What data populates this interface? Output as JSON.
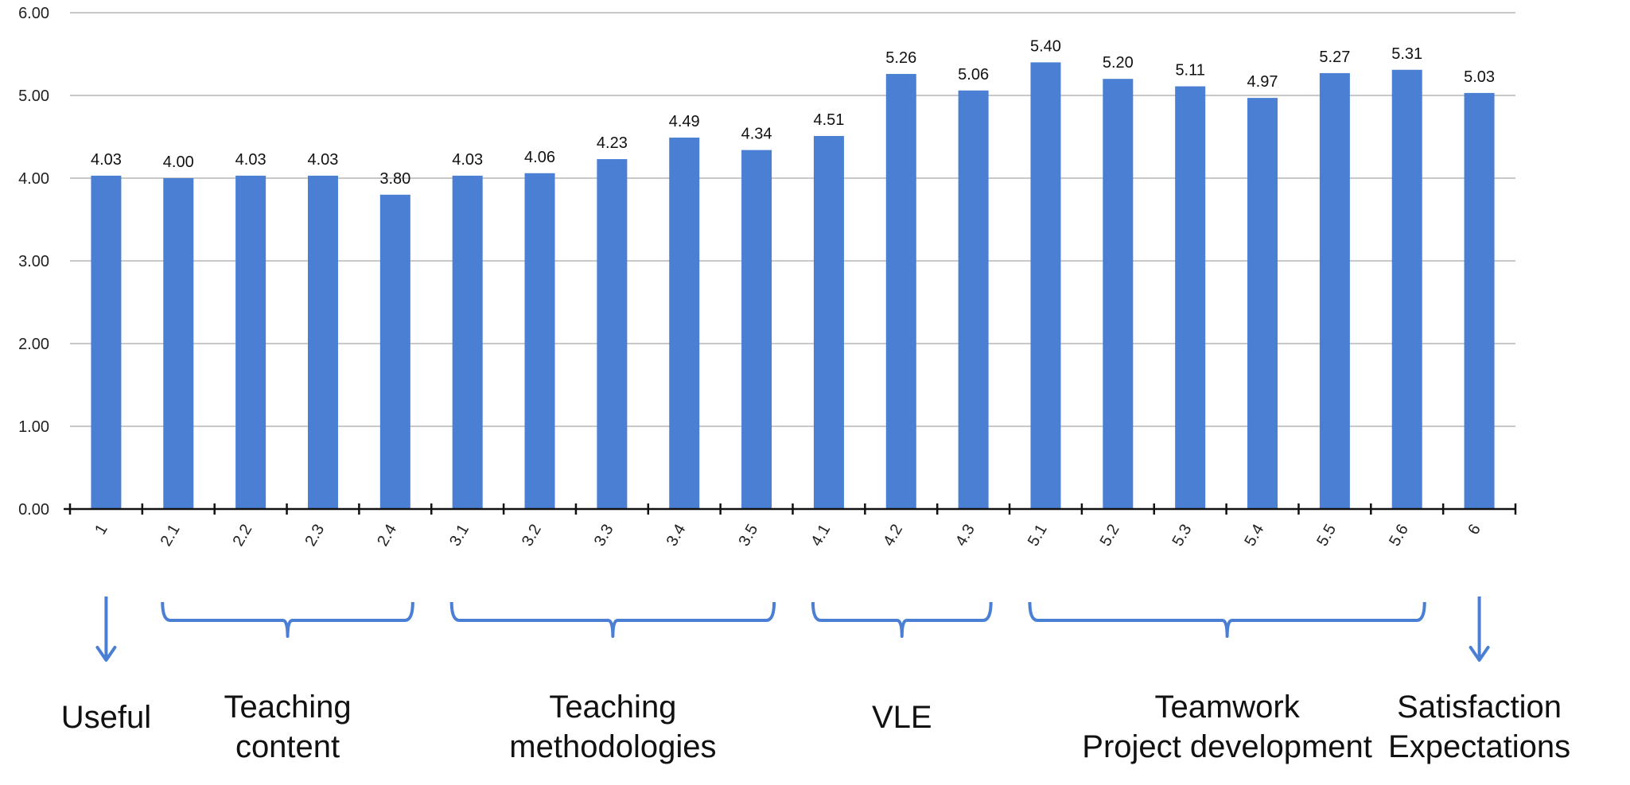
{
  "chart_data": {
    "type": "bar",
    "categories": [
      "1",
      "2.1",
      "2.2",
      "2.3",
      "2.4",
      "3.1",
      "3.2",
      "3.3",
      "3.4",
      "3.5",
      "4.1",
      "4.2",
      "4.3",
      "5.1",
      "5.2",
      "5.3",
      "5.4",
      "5.5",
      "5.6",
      "6"
    ],
    "values": [
      4.03,
      4.0,
      4.03,
      4.03,
      3.8,
      4.03,
      4.06,
      4.23,
      4.49,
      4.34,
      4.51,
      5.26,
      5.06,
      5.4,
      5.2,
      5.11,
      4.97,
      5.27,
      5.31,
      5.03
    ],
    "data_labels": [
      "4.03",
      "4.00",
      "4.03",
      "4.03",
      "3.80",
      "4.03",
      "4.06",
      "4.23",
      "4.49",
      "4.34",
      "4.51",
      "5.26",
      "5.06",
      "5.40",
      "5.20",
      "5.11",
      "4.97",
      "5.27",
      "5.31",
      "5.03"
    ],
    "title": "",
    "xlabel": "",
    "ylabel": "",
    "ylim": [
      0,
      6
    ],
    "y_ticks": [
      "0.00",
      "1.00",
      "2.00",
      "3.00",
      "4.00",
      "5.00",
      "6.00"
    ],
    "grid": true,
    "legend": "none",
    "bar_color": "#4A7FD4",
    "grid_color": "#c8c8c8",
    "annotation_color": "#4A7FD4",
    "groups": [
      {
        "lines": [
          "Useful"
        ],
        "marker": "arrow",
        "start": 0,
        "end": 0
      },
      {
        "lines": [
          "Teaching",
          "content"
        ],
        "marker": "brace",
        "start": 1,
        "end": 4
      },
      {
        "lines": [
          "Teaching",
          "methodologies"
        ],
        "marker": "brace",
        "start": 5,
        "end": 9
      },
      {
        "lines": [
          "VLE"
        ],
        "marker": "brace",
        "start": 10,
        "end": 12
      },
      {
        "lines": [
          "Teamwork",
          "Project development"
        ],
        "marker": "brace",
        "start": 13,
        "end": 18
      },
      {
        "lines": [
          "Satisfaction",
          "Expectations"
        ],
        "marker": "arrow",
        "start": 19,
        "end": 19
      }
    ]
  }
}
